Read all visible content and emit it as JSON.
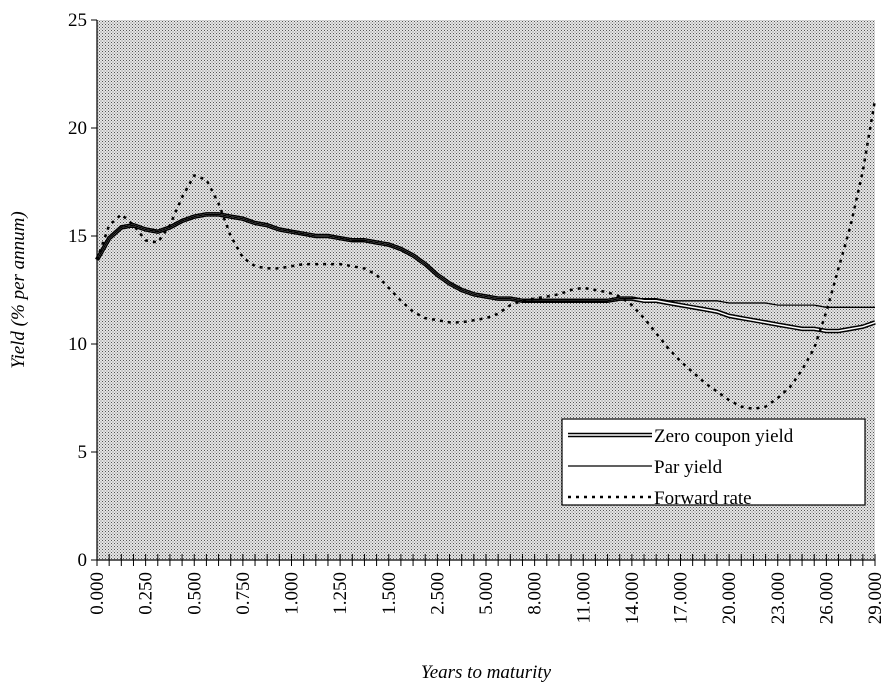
{
  "chart_data": {
    "type": "line",
    "xlabel": "Years to maturity",
    "ylabel": "Yield (% per annum)",
    "categories": [
      "0.000",
      null,
      null,
      null,
      "0.250",
      null,
      null,
      null,
      "0.500",
      null,
      null,
      null,
      "0.750",
      null,
      null,
      null,
      "1.000",
      null,
      null,
      null,
      "1.250",
      null,
      null,
      null,
      "1.500",
      null,
      null,
      null,
      "2.500",
      null,
      null,
      null,
      "5.000",
      null,
      null,
      null,
      "8.000",
      null,
      null,
      null,
      "11.000",
      null,
      null,
      null,
      "14.000",
      null,
      null,
      null,
      "17.000",
      null,
      null,
      null,
      "20.000",
      null,
      null,
      null,
      "23.000",
      null,
      null,
      null,
      "26.000",
      null,
      null,
      null,
      "29.000"
    ],
    "series": [
      {
        "name": "Zero coupon yield",
        "color": "#000000",
        "style": "double",
        "values": [
          13.9,
          14.9,
          15.4,
          15.5,
          15.3,
          15.2,
          15.4,
          15.7,
          15.9,
          16.0,
          16.0,
          15.9,
          15.8,
          15.6,
          15.5,
          15.3,
          15.2,
          15.1,
          15.0,
          15.0,
          14.9,
          14.8,
          14.8,
          14.7,
          14.6,
          14.4,
          14.1,
          13.7,
          13.2,
          12.8,
          12.5,
          12.3,
          12.2,
          12.1,
          12.1,
          12.0,
          12.0,
          12.0,
          12.0,
          12.0,
          12.0,
          12.0,
          12.0,
          12.1,
          12.1,
          12.0,
          12.0,
          11.9,
          11.8,
          11.7,
          11.6,
          11.5,
          11.3,
          11.2,
          11.1,
          11.0,
          10.9,
          10.8,
          10.7,
          10.7,
          10.6,
          10.6,
          10.7,
          10.8,
          11.0
        ]
      },
      {
        "name": "Par yield",
        "color": "#000000",
        "style": "solid",
        "values": [
          13.9,
          14.9,
          15.4,
          15.5,
          15.3,
          15.2,
          15.4,
          15.7,
          15.9,
          16.0,
          16.0,
          15.9,
          15.8,
          15.6,
          15.5,
          15.3,
          15.2,
          15.1,
          15.0,
          15.0,
          14.9,
          14.8,
          14.8,
          14.7,
          14.6,
          14.4,
          14.1,
          13.7,
          13.2,
          12.8,
          12.5,
          12.3,
          12.2,
          12.1,
          12.1,
          12.0,
          12.0,
          12.0,
          12.0,
          12.0,
          12.0,
          12.0,
          12.0,
          12.1,
          12.1,
          12.1,
          12.1,
          12.0,
          12.0,
          12.0,
          12.0,
          12.0,
          11.9,
          11.9,
          11.9,
          11.9,
          11.8,
          11.8,
          11.8,
          11.8,
          11.7,
          11.7,
          11.7,
          11.7,
          11.7
        ]
      },
      {
        "name": "Forward rate",
        "color": "#000000",
        "style": "dotted",
        "values": [
          13.9,
          15.5,
          16.0,
          15.5,
          14.8,
          14.7,
          15.5,
          16.8,
          17.8,
          17.6,
          16.5,
          15.0,
          14.0,
          13.6,
          13.5,
          13.5,
          13.6,
          13.7,
          13.7,
          13.7,
          13.7,
          13.6,
          13.5,
          13.2,
          12.6,
          12.0,
          11.5,
          11.2,
          11.1,
          11.0,
          11.0,
          11.1,
          11.2,
          11.4,
          11.8,
          12.0,
          12.1,
          12.2,
          12.3,
          12.5,
          12.6,
          12.5,
          12.4,
          12.2,
          11.8,
          11.2,
          10.5,
          9.8,
          9.2,
          8.7,
          8.2,
          7.8,
          7.4,
          7.1,
          7.0,
          7.1,
          7.5,
          8.0,
          8.8,
          9.8,
          11.5,
          13.5,
          15.5,
          18.0,
          21.3
        ]
      }
    ],
    "ylim": [
      0,
      25
    ],
    "yticks": [
      0,
      5,
      10,
      15,
      20,
      25
    ],
    "legend": "lower right",
    "background": "dotted"
  }
}
